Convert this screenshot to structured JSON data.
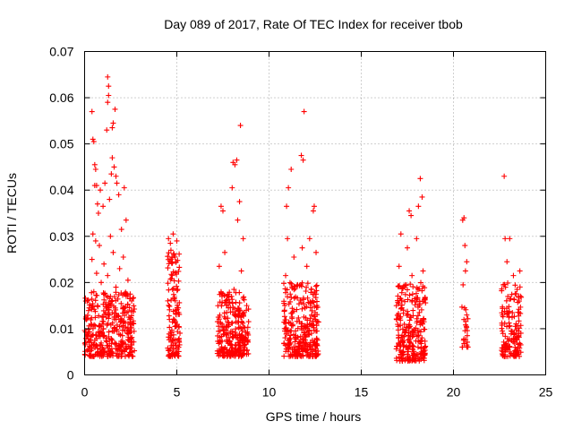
{
  "chart_data": {
    "type": "scatter",
    "title": "Day 089 of 2017, Rate Of TEC Index for receiver tbob",
    "xlabel": "GPS time / hours",
    "ylabel": "ROTI / TECUs",
    "xlim": [
      0,
      25
    ],
    "ylim": [
      0,
      0.07
    ],
    "x_ticks": [
      0,
      5,
      10,
      15,
      20,
      25
    ],
    "x_tick_labels": [
      "0",
      "5",
      "10",
      "15",
      "20",
      "25"
    ],
    "y_ticks": [
      0,
      0.01,
      0.02,
      0.03,
      0.04,
      0.05,
      0.06,
      0.07
    ],
    "y_tick_labels": [
      "0",
      "0.01",
      "0.02",
      "0.03",
      "0.04",
      "0.05",
      "0.06",
      "0.07"
    ],
    "grid": true,
    "marker": "+",
    "color": "#ff0000",
    "series": [
      {
        "name": "ROTI",
        "points": [
          {
            "x": 0.05,
            "y": 0.007
          },
          {
            "x": 0.1,
            "y": 0.012
          },
          {
            "x": 0.15,
            "y": 0.016
          },
          {
            "x": 0.2,
            "y": 0.009
          },
          {
            "x": 0.25,
            "y": 0.0145
          },
          {
            "x": 0.3,
            "y": 0.006
          },
          {
            "x": 0.35,
            "y": 0.011
          },
          {
            "x": 0.4,
            "y": 0.025
          },
          {
            "x": 0.4,
            "y": 0.057
          },
          {
            "x": 0.45,
            "y": 0.0305
          },
          {
            "x": 0.45,
            "y": 0.051
          },
          {
            "x": 0.5,
            "y": 0.0505
          },
          {
            "x": 0.5,
            "y": 0.018
          },
          {
            "x": 0.55,
            "y": 0.0455
          },
          {
            "x": 0.55,
            "y": 0.041
          },
          {
            "x": 0.6,
            "y": 0.0445
          },
          {
            "x": 0.6,
            "y": 0.029
          },
          {
            "x": 0.65,
            "y": 0.041
          },
          {
            "x": 0.65,
            "y": 0.022
          },
          {
            "x": 0.7,
            "y": 0.037
          },
          {
            "x": 0.7,
            "y": 0.015
          },
          {
            "x": 0.75,
            "y": 0.035
          },
          {
            "x": 0.8,
            "y": 0.0105
          },
          {
            "x": 0.8,
            "y": 0.028
          },
          {
            "x": 0.85,
            "y": 0.04
          },
          {
            "x": 0.85,
            "y": 0.0065
          },
          {
            "x": 0.9,
            "y": 0.02
          },
          {
            "x": 0.95,
            "y": 0.0125
          },
          {
            "x": 1.0,
            "y": 0.0365
          },
          {
            "x": 1.0,
            "y": 0.0085
          },
          {
            "x": 1.05,
            "y": 0.024
          },
          {
            "x": 1.1,
            "y": 0.0415
          },
          {
            "x": 1.15,
            "y": 0.0135
          },
          {
            "x": 1.2,
            "y": 0.053
          },
          {
            "x": 1.25,
            "y": 0.0645
          },
          {
            "x": 1.25,
            "y": 0.059
          },
          {
            "x": 1.25,
            "y": 0.0215
          },
          {
            "x": 1.3,
            "y": 0.0625
          },
          {
            "x": 1.3,
            "y": 0.0605
          },
          {
            "x": 1.35,
            "y": 0.0075
          },
          {
            "x": 1.35,
            "y": 0.038
          },
          {
            "x": 1.4,
            "y": 0.03
          },
          {
            "x": 1.4,
            "y": 0.017
          },
          {
            "x": 1.45,
            "y": 0.0435
          },
          {
            "x": 1.5,
            "y": 0.0535
          },
          {
            "x": 1.5,
            "y": 0.047
          },
          {
            "x": 1.5,
            "y": 0.0095
          },
          {
            "x": 1.55,
            "y": 0.0545
          },
          {
            "x": 1.55,
            "y": 0.0265
          },
          {
            "x": 1.6,
            "y": 0.045
          },
          {
            "x": 1.6,
            "y": 0.0125
          },
          {
            "x": 1.65,
            "y": 0.0575
          },
          {
            "x": 1.7,
            "y": 0.043
          },
          {
            "x": 1.7,
            "y": 0.019
          },
          {
            "x": 1.75,
            "y": 0.0415
          },
          {
            "x": 1.8,
            "y": 0.0055
          },
          {
            "x": 1.85,
            "y": 0.039
          },
          {
            "x": 1.9,
            "y": 0.023
          },
          {
            "x": 1.95,
            "y": 0.0115
          },
          {
            "x": 2.0,
            "y": 0.0315
          },
          {
            "x": 2.05,
            "y": 0.0085
          },
          {
            "x": 2.1,
            "y": 0.0255
          },
          {
            "x": 2.15,
            "y": 0.0405
          },
          {
            "x": 2.2,
            "y": 0.0145
          },
          {
            "x": 2.25,
            "y": 0.0335
          },
          {
            "x": 2.3,
            "y": 0.0095
          },
          {
            "x": 2.35,
            "y": 0.0205
          },
          {
            "x": 2.4,
            "y": 0.0125
          },
          {
            "x": 2.45,
            "y": 0.0165
          },
          {
            "x": 2.5,
            "y": 0.008
          },
          {
            "x": 2.55,
            "y": 0.011
          },
          {
            "x": 4.55,
            "y": 0.0295
          },
          {
            "x": 4.6,
            "y": 0.012
          },
          {
            "x": 4.65,
            "y": 0.0285
          },
          {
            "x": 4.7,
            "y": 0.0085
          },
          {
            "x": 4.75,
            "y": 0.0215
          },
          {
            "x": 4.8,
            "y": 0.0305
          },
          {
            "x": 4.8,
            "y": 0.0055
          },
          {
            "x": 4.85,
            "y": 0.0165
          },
          {
            "x": 4.9,
            "y": 0.0255
          },
          {
            "x": 4.95,
            "y": 0.0105
          },
          {
            "x": 5.0,
            "y": 0.029
          },
          {
            "x": 5.05,
            "y": 0.0185
          },
          {
            "x": 5.1,
            "y": 0.0135
          },
          {
            "x": 5.15,
            "y": 0.0065
          },
          {
            "x": 7.25,
            "y": 0.0125
          },
          {
            "x": 7.3,
            "y": 0.0235
          },
          {
            "x": 7.35,
            "y": 0.0075
          },
          {
            "x": 7.4,
            "y": 0.0365
          },
          {
            "x": 7.45,
            "y": 0.017
          },
          {
            "x": 7.5,
            "y": 0.0355
          },
          {
            "x": 7.55,
            "y": 0.0105
          },
          {
            "x": 7.6,
            "y": 0.0265
          },
          {
            "x": 7.7,
            "y": 0.0055
          },
          {
            "x": 7.8,
            "y": 0.0145
          },
          {
            "x": 7.9,
            "y": 0.009
          },
          {
            "x": 8.0,
            "y": 0.0405
          },
          {
            "x": 8.05,
            "y": 0.046
          },
          {
            "x": 8.1,
            "y": 0.0185
          },
          {
            "x": 8.15,
            "y": 0.0455
          },
          {
            "x": 8.2,
            "y": 0.0115
          },
          {
            "x": 8.25,
            "y": 0.0465
          },
          {
            "x": 8.3,
            "y": 0.0335
          },
          {
            "x": 8.35,
            "y": 0.0065
          },
          {
            "x": 8.4,
            "y": 0.0375
          },
          {
            "x": 8.45,
            "y": 0.054
          },
          {
            "x": 8.5,
            "y": 0.0225
          },
          {
            "x": 8.55,
            "y": 0.0095
          },
          {
            "x": 8.6,
            "y": 0.0295
          },
          {
            "x": 8.65,
            "y": 0.0135
          },
          {
            "x": 8.7,
            "y": 0.0075
          },
          {
            "x": 10.85,
            "y": 0.0095
          },
          {
            "x": 10.9,
            "y": 0.0215
          },
          {
            "x": 10.95,
            "y": 0.0365
          },
          {
            "x": 11.0,
            "y": 0.0295
          },
          {
            "x": 11.05,
            "y": 0.0405
          },
          {
            "x": 11.1,
            "y": 0.0065
          },
          {
            "x": 11.15,
            "y": 0.0175
          },
          {
            "x": 11.2,
            "y": 0.0445
          },
          {
            "x": 11.25,
            "y": 0.0125
          },
          {
            "x": 11.35,
            "y": 0.0255
          },
          {
            "x": 11.45,
            "y": 0.0085
          },
          {
            "x": 11.55,
            "y": 0.0195
          },
          {
            "x": 11.65,
            "y": 0.0115
          },
          {
            "x": 11.75,
            "y": 0.0475
          },
          {
            "x": 11.8,
            "y": 0.0275
          },
          {
            "x": 11.85,
            "y": 0.0465
          },
          {
            "x": 11.9,
            "y": 0.057
          },
          {
            "x": 11.95,
            "y": 0.0145
          },
          {
            "x": 12.0,
            "y": 0.0055
          },
          {
            "x": 12.05,
            "y": 0.0235
          },
          {
            "x": 12.1,
            "y": 0.0105
          },
          {
            "x": 12.2,
            "y": 0.0295
          },
          {
            "x": 12.3,
            "y": 0.0185
          },
          {
            "x": 12.35,
            "y": 0.0075
          },
          {
            "x": 12.4,
            "y": 0.0355
          },
          {
            "x": 12.45,
            "y": 0.0365
          },
          {
            "x": 12.5,
            "y": 0.0135
          },
          {
            "x": 12.55,
            "y": 0.0265
          },
          {
            "x": 12.6,
            "y": 0.0095
          },
          {
            "x": 17.0,
            "y": 0.0105
          },
          {
            "x": 17.05,
            "y": 0.0235
          },
          {
            "x": 17.1,
            "y": 0.0065
          },
          {
            "x": 17.15,
            "y": 0.0305
          },
          {
            "x": 17.2,
            "y": 0.0145
          },
          {
            "x": 17.3,
            "y": 0.0045
          },
          {
            "x": 17.4,
            "y": 0.0195
          },
          {
            "x": 17.5,
            "y": 0.0275
          },
          {
            "x": 17.55,
            "y": 0.0085
          },
          {
            "x": 17.6,
            "y": 0.0355
          },
          {
            "x": 17.65,
            "y": 0.0125
          },
          {
            "x": 17.7,
            "y": 0.0345
          },
          {
            "x": 17.75,
            "y": 0.0215
          },
          {
            "x": 17.8,
            "y": 0.0055
          },
          {
            "x": 17.9,
            "y": 0.0165
          },
          {
            "x": 18.0,
            "y": 0.0295
          },
          {
            "x": 18.05,
            "y": 0.0095
          },
          {
            "x": 18.1,
            "y": 0.0365
          },
          {
            "x": 18.15,
            "y": 0.0135
          },
          {
            "x": 18.2,
            "y": 0.0425
          },
          {
            "x": 18.25,
            "y": 0.0075
          },
          {
            "x": 18.3,
            "y": 0.0385
          },
          {
            "x": 18.35,
            "y": 0.0225
          },
          {
            "x": 18.4,
            "y": 0.0115
          },
          {
            "x": 18.45,
            "y": 0.0045
          },
          {
            "x": 20.5,
            "y": 0.0335
          },
          {
            "x": 20.52,
            "y": 0.0195
          },
          {
            "x": 20.55,
            "y": 0.0075
          },
          {
            "x": 20.57,
            "y": 0.034
          },
          {
            "x": 20.6,
            "y": 0.0145
          },
          {
            "x": 20.62,
            "y": 0.028
          },
          {
            "x": 20.65,
            "y": 0.0225
          },
          {
            "x": 20.7,
            "y": 0.0105
          },
          {
            "x": 20.72,
            "y": 0.0245
          },
          {
            "x": 20.75,
            "y": 0.0085
          },
          {
            "x": 22.65,
            "y": 0.0095
          },
          {
            "x": 22.7,
            "y": 0.0195
          },
          {
            "x": 22.75,
            "y": 0.043
          },
          {
            "x": 22.8,
            "y": 0.0295
          },
          {
            "x": 22.85,
            "y": 0.0055
          },
          {
            "x": 22.9,
            "y": 0.0245
          },
          {
            "x": 23.0,
            "y": 0.0125
          },
          {
            "x": 23.05,
            "y": 0.0295
          },
          {
            "x": 23.1,
            "y": 0.0165
          },
          {
            "x": 23.15,
            "y": 0.0075
          },
          {
            "x": 23.25,
            "y": 0.0215
          },
          {
            "x": 23.35,
            "y": 0.0105
          },
          {
            "x": 23.45,
            "y": 0.0185
          },
          {
            "x": 23.55,
            "y": 0.0135
          },
          {
            "x": 23.6,
            "y": 0.0225
          },
          {
            "x": 23.65,
            "y": 0.0065
          }
        ],
        "dense_clusters": [
          {
            "x_range": [
              0.0,
              2.7
            ],
            "y_range": [
              0.004,
              0.018
            ],
            "point_count": 340
          },
          {
            "x_range": [
              4.5,
              5.2
            ],
            "y_range": [
              0.004,
              0.027
            ],
            "point_count": 120
          },
          {
            "x_range": [
              7.2,
              8.9
            ],
            "y_range": [
              0.004,
              0.018
            ],
            "point_count": 260
          },
          {
            "x_range": [
              10.8,
              12.7
            ],
            "y_range": [
              0.004,
              0.02
            ],
            "point_count": 280
          },
          {
            "x_range": [
              16.9,
              18.5
            ],
            "y_range": [
              0.003,
              0.02
            ],
            "point_count": 240
          },
          {
            "x_range": [
              20.45,
              20.8
            ],
            "y_range": [
              0.006,
              0.016
            ],
            "point_count": 20
          },
          {
            "x_range": [
              22.6,
              23.7
            ],
            "y_range": [
              0.004,
              0.02
            ],
            "point_count": 140
          }
        ]
      }
    ]
  }
}
